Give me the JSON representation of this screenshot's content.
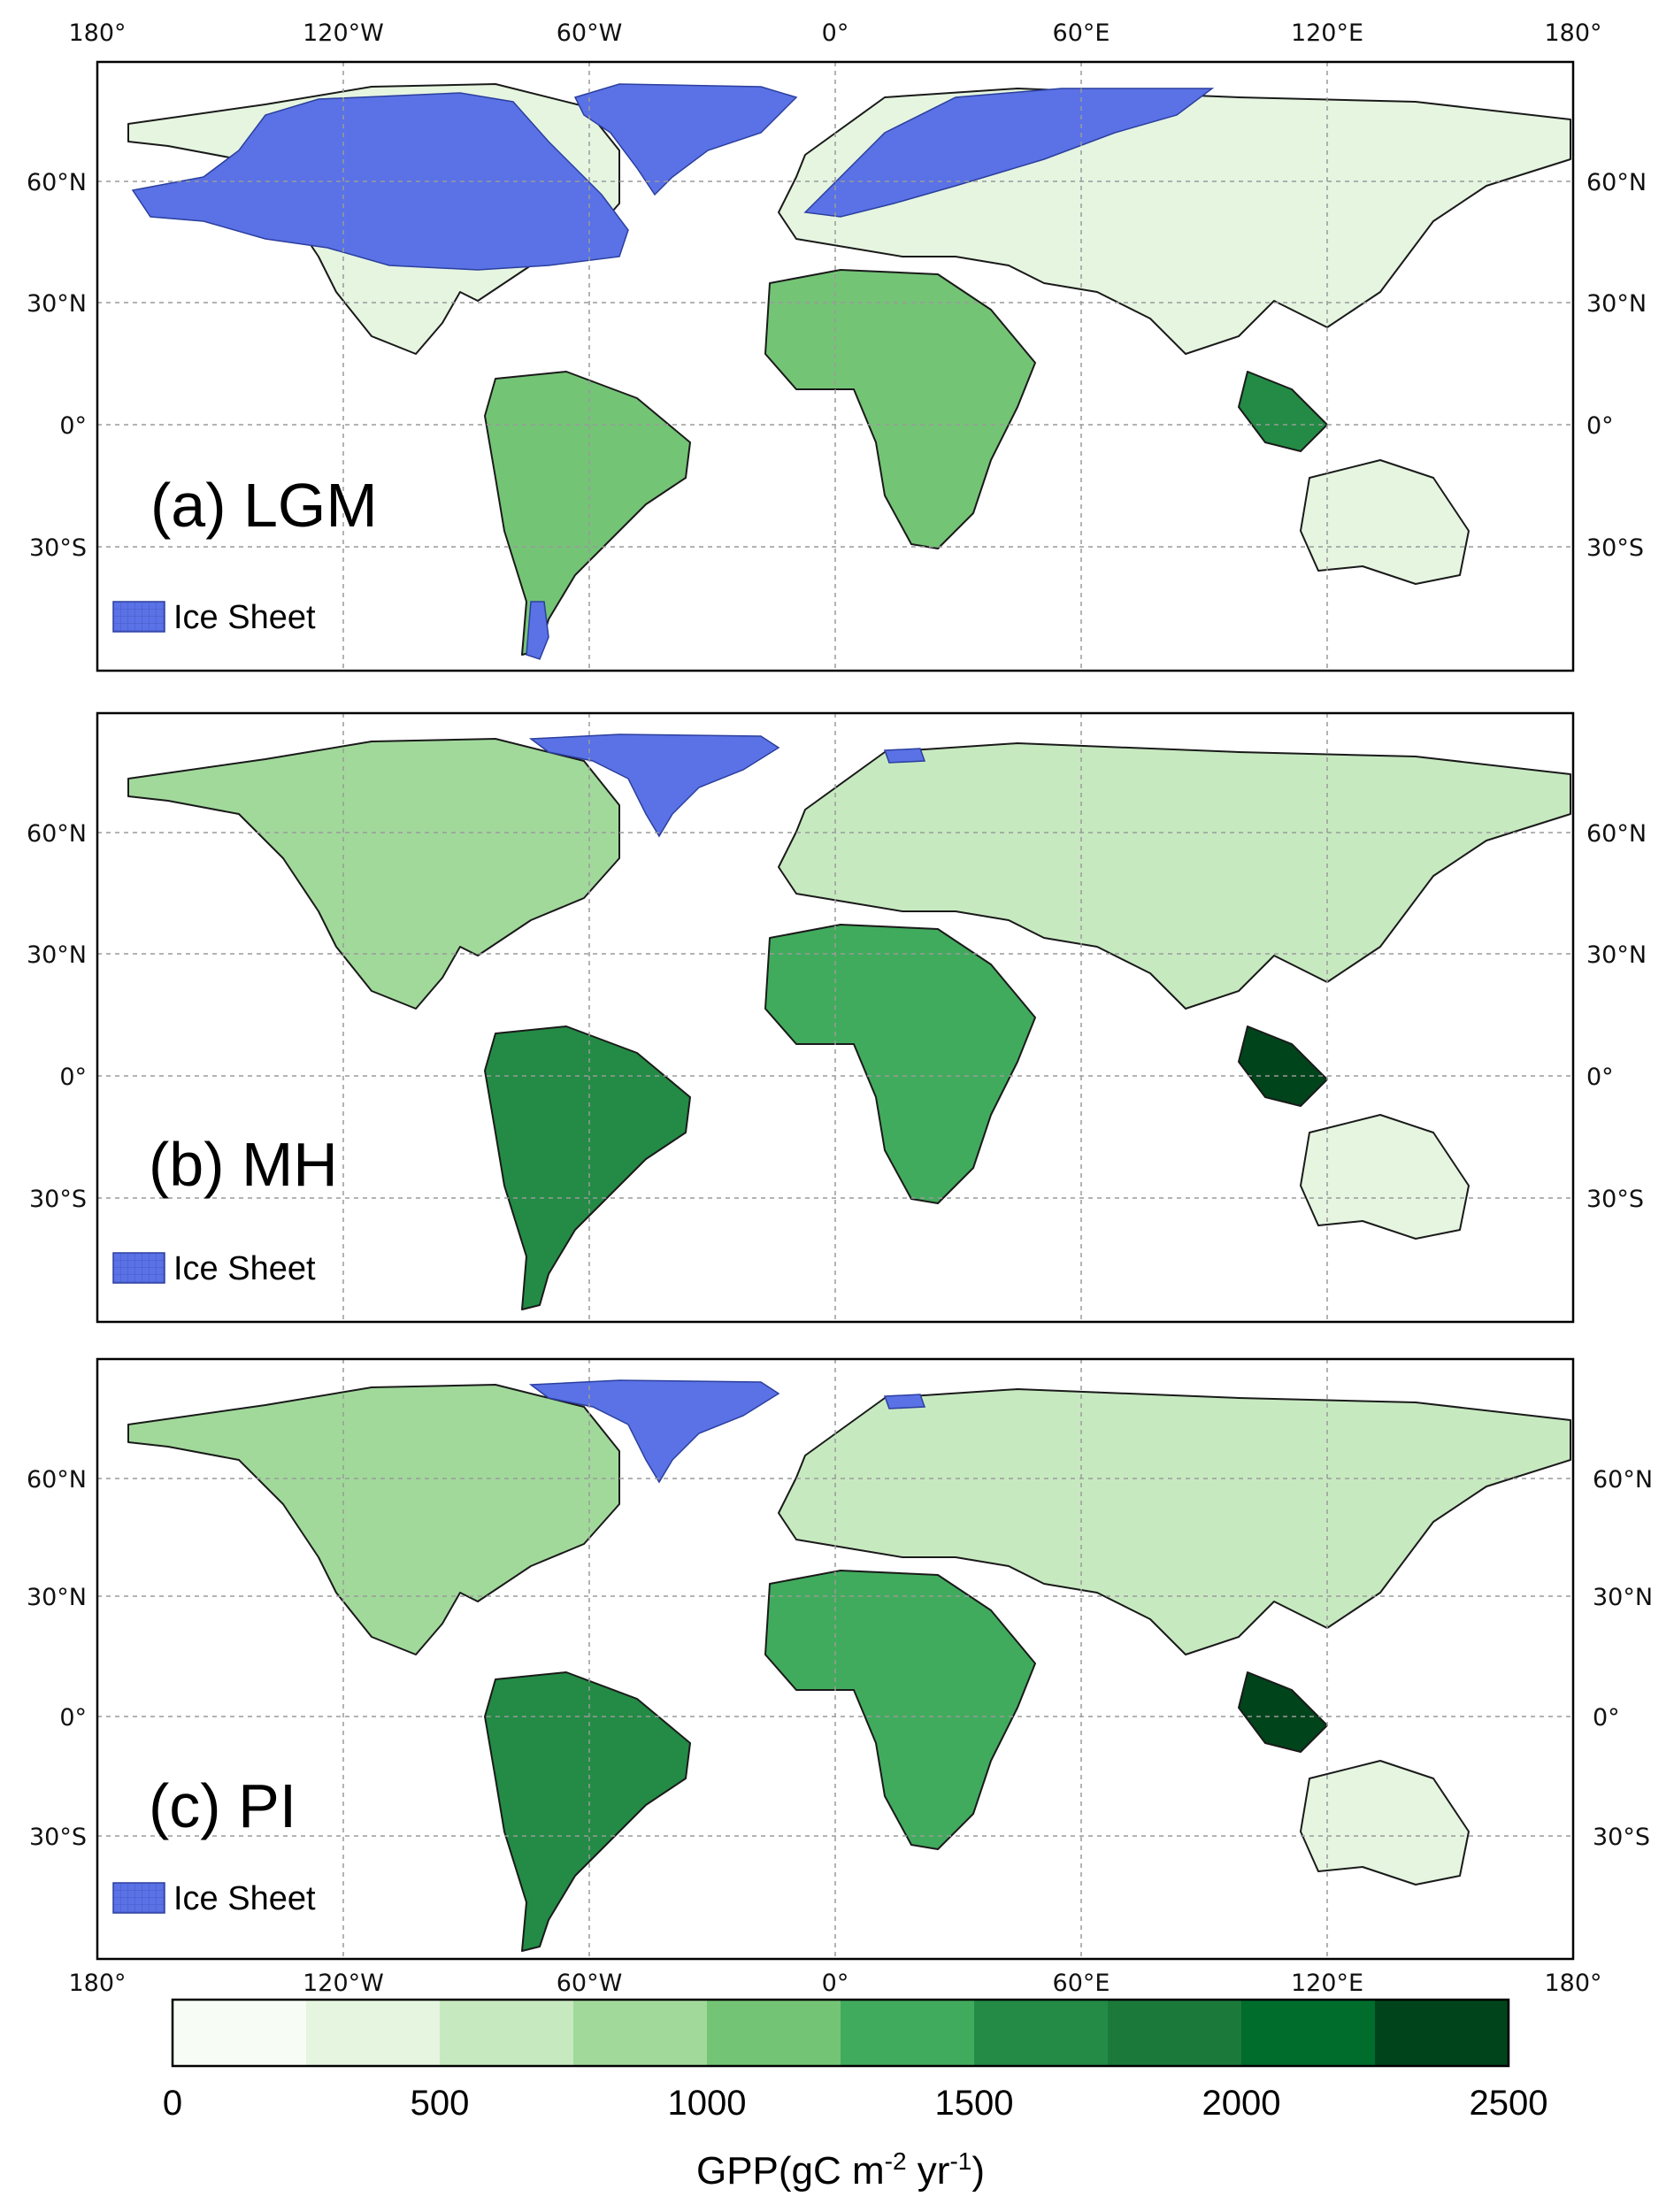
{
  "colors": {
    "ice": "#5a72e6",
    "palette": [
      "#f7fcf5",
      "#e5f5e0",
      "#c7e9c0",
      "#a1d99b",
      "#74c476",
      "#41ab5d",
      "#238b45",
      "#1b7a3a",
      "#006d2c",
      "#00441b"
    ]
  },
  "lon_labels": [
    "180°",
    "120°W",
    "60°W",
    "0°",
    "60°E",
    "120°E",
    "180°"
  ],
  "lat_labels": [
    "60°N",
    "30°N",
    "0°",
    "30°S"
  ],
  "panels": [
    {
      "label": "(a) LGM",
      "legend": "Ice Sheet",
      "ice_level": "extensive"
    },
    {
      "label": "(b) MH",
      "legend": "Ice Sheet",
      "ice_level": "greenland"
    },
    {
      "label": "(c) PI",
      "legend": "Ice Sheet",
      "ice_level": "greenland"
    }
  ],
  "colorbar": {
    "min": 0,
    "max": 2500,
    "step": 250,
    "tick_labels": [
      "0",
      "500",
      "1000",
      "1500",
      "2000",
      "2500"
    ],
    "unit": {
      "prefix": "GPP(gC m",
      "exp1": "-2",
      "mid": " yr",
      "exp2": "-1",
      "suffix": ")"
    }
  }
}
